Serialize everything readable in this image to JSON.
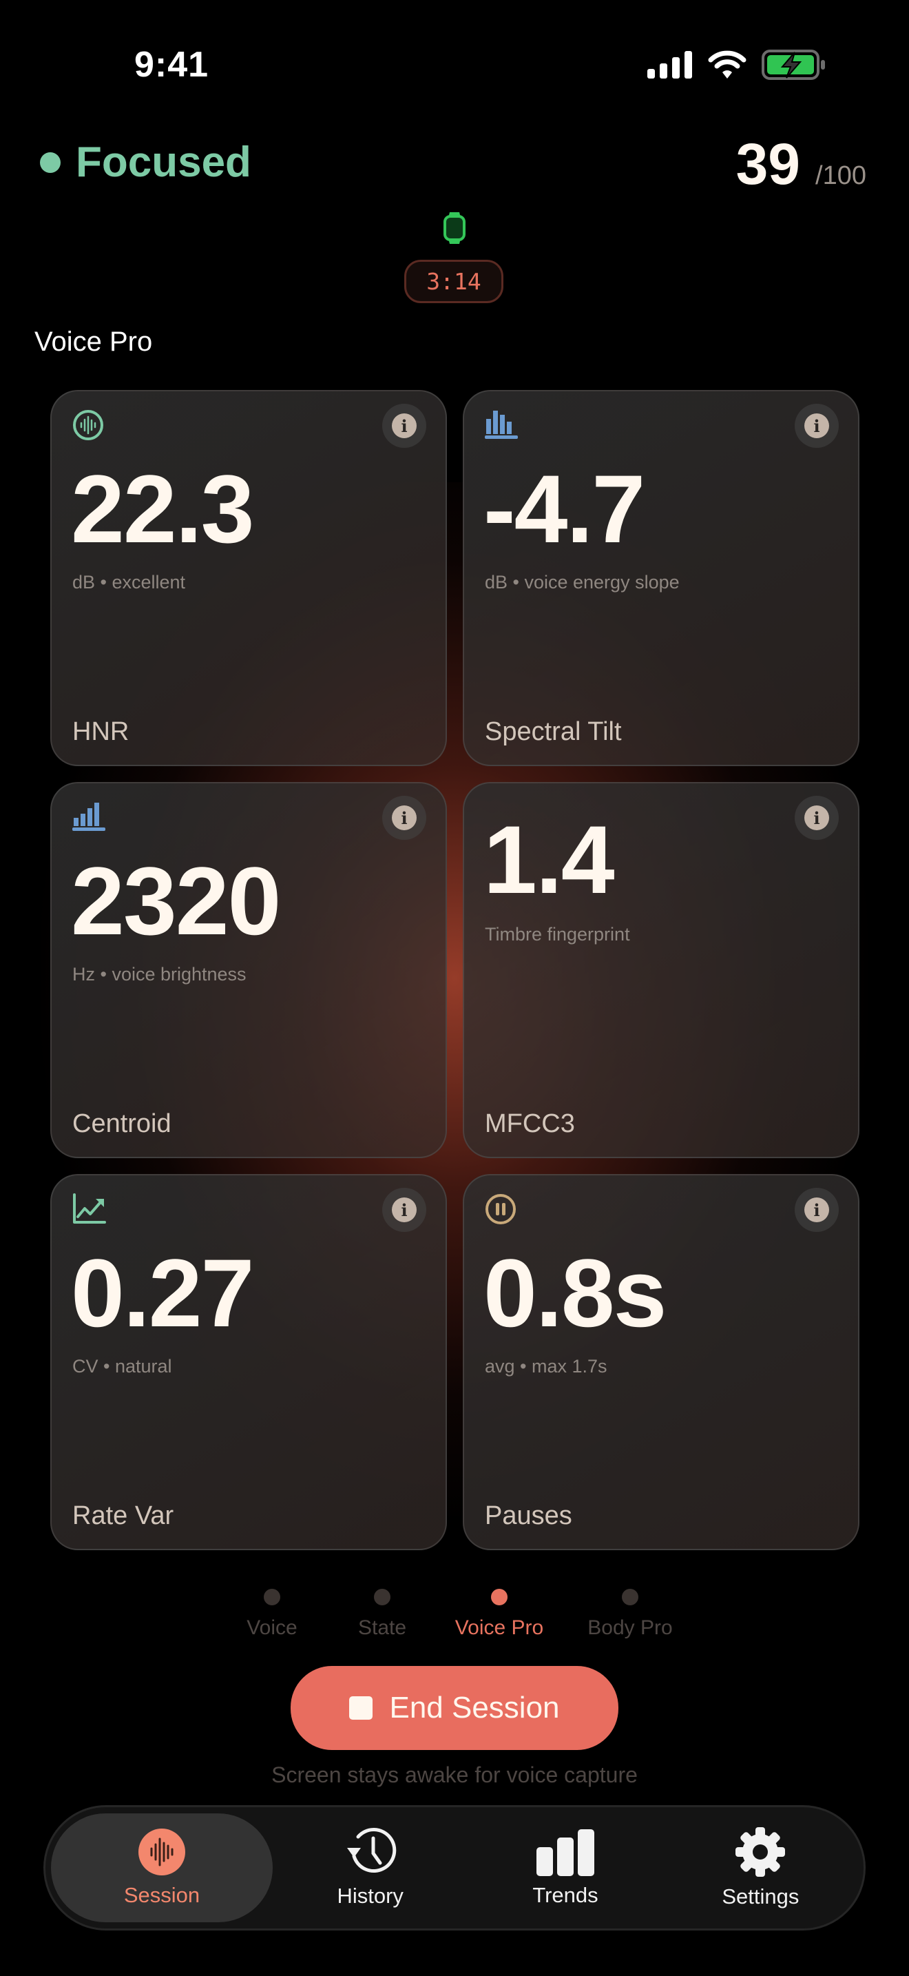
{
  "status_bar": {
    "time": "9:41",
    "icons": [
      "cellular-signal-icon",
      "wifi-icon",
      "battery-charging-icon"
    ]
  },
  "header": {
    "state_label": "Focused",
    "state_color": "#7dcaa5",
    "score": "39",
    "score_max": "/100",
    "device_icon": "watch-icon",
    "timer": "3:14"
  },
  "section_title": "Voice Pro",
  "cards": [
    {
      "icon": "waveform-circle-icon",
      "value": "22.3",
      "subtitle": "dB • excellent",
      "label": "HNR"
    },
    {
      "icon": "spectrum-bars-icon",
      "value": "-4.7",
      "subtitle": "dB • voice energy slope",
      "label": "Spectral Tilt"
    },
    {
      "icon": "rising-bars-icon",
      "value": "2320",
      "subtitle": "Hz • voice brightness",
      "label": "Centroid"
    },
    {
      "icon": "",
      "value": "1.4",
      "subtitle": "Timbre fingerprint",
      "label": "MFCC3"
    },
    {
      "icon": "trend-chart-icon",
      "value": "0.27",
      "subtitle": "CV • natural",
      "label": "Rate Var"
    },
    {
      "icon": "pause-circle-icon",
      "value": "0.8s",
      "subtitle": "avg • max 1.7s",
      "label": "Pauses"
    }
  ],
  "pager": [
    {
      "label": "Voice"
    },
    {
      "label": "State"
    },
    {
      "label": "Voice Pro",
      "active": true
    },
    {
      "label": "Body Pro"
    }
  ],
  "end_button": "End Session",
  "caption": "Screen stays awake for voice capture",
  "tabs": [
    {
      "label": "Session",
      "icon": "waveform-icon",
      "active": true
    },
    {
      "label": "History",
      "icon": "history-clock-icon"
    },
    {
      "label": "Trends",
      "icon": "bar-chart-icon"
    },
    {
      "label": "Settings",
      "icon": "gear-icon"
    }
  ],
  "colors": {
    "accent": "#e86d5f",
    "focused": "#7dcaa5",
    "watch": "#34c759"
  }
}
